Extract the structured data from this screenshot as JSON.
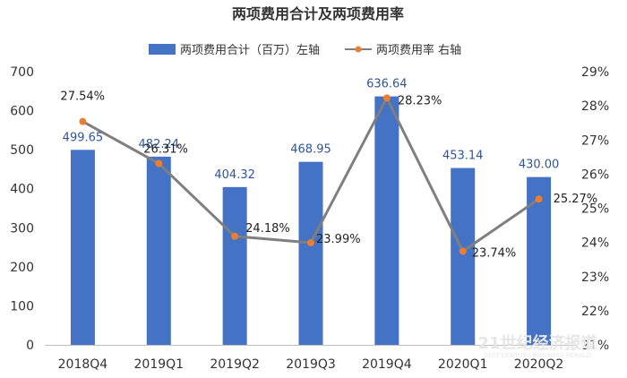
{
  "chart_data": {
    "type": "bar",
    "title": "两项费用合计及两项费用率",
    "categories": [
      "2018Q4",
      "2019Q1",
      "2019Q2",
      "2019Q3",
      "2019Q4",
      "2020Q1",
      "2020Q2"
    ],
    "series": [
      {
        "name": "两项费用合计（百万）左轴",
        "type": "bar",
        "axis": "left",
        "values": [
          499.65,
          482.24,
          404.32,
          468.95,
          636.64,
          453.14,
          430.0
        ],
        "labels": [
          "499.65",
          "482.24",
          "404.32",
          "468.95",
          "636.64",
          "453.14",
          "430.00"
        ]
      },
      {
        "name": "两项费用率 右轴",
        "type": "line",
        "axis": "right",
        "values": [
          27.54,
          26.31,
          24.18,
          23.99,
          28.23,
          23.74,
          25.27
        ],
        "labels": [
          "27.54%",
          "26.31%",
          "24.18%",
          "23.99%",
          "28.23%",
          "23.74%",
          "25.27%"
        ]
      }
    ],
    "y_left": {
      "ylim": [
        0,
        700
      ],
      "ticks": [
        "0",
        "100",
        "200",
        "300",
        "400",
        "500",
        "600",
        "700"
      ]
    },
    "y_right": {
      "ylim": [
        21,
        29
      ],
      "ticks": [
        "21%",
        "22%",
        "23%",
        "24%",
        "25%",
        "26%",
        "27%",
        "28%",
        "29%"
      ]
    },
    "grid": false,
    "legend": "top",
    "colors": {
      "bar": "#4472C4",
      "line": "#7F7F7F",
      "marker": "#ED7D31",
      "bar_label": "#2F5597"
    }
  },
  "watermark": {
    "main": "21世纪经济报道",
    "sub": "21ST CENTURY BUSINESS HERALD"
  }
}
